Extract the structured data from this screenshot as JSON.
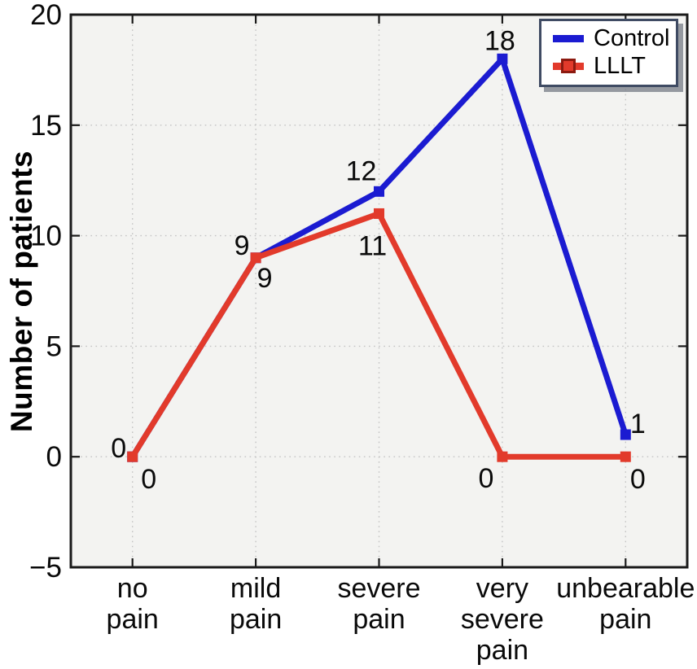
{
  "figure": {
    "background": "#ffffff",
    "plot_background": "#f3f3f1",
    "grid_color": "#c3c3c3",
    "axis_color": "#1a1a1a",
    "legend_border_color": "#3f4b63"
  },
  "chart_data": {
    "type": "line",
    "title": "",
    "xlabel": "",
    "ylabel": "Number of patients",
    "ylim": [
      -5,
      20
    ],
    "yticks": [
      20,
      15,
      10,
      5,
      0,
      -5
    ],
    "ytick_labels": [
      "20",
      "15",
      "10",
      "5",
      "0",
      "−5"
    ],
    "grid": true,
    "legend_position": "top-right",
    "categories": [
      "no pain",
      "mild pain",
      "severe pain",
      "very severe pain",
      "unbearable pain"
    ],
    "category_label_lines": [
      [
        "no",
        "pain"
      ],
      [
        "mild",
        "pain"
      ],
      [
        "severe",
        "pain"
      ],
      [
        "very",
        "severe",
        "pain"
      ],
      [
        "unbearable",
        "pain"
      ]
    ],
    "series": [
      {
        "name": "Control",
        "color": "#1b1bd1",
        "marker": "square",
        "values": [
          0,
          9,
          12,
          18,
          1
        ],
        "point_labels": [
          "0",
          "9",
          "12",
          "18",
          "1"
        ]
      },
      {
        "name": "LLLT",
        "color": "#e23a2b",
        "marker": "square",
        "marker_edge": "#8c1a10",
        "values": [
          0,
          9,
          11,
          0,
          0
        ],
        "point_labels": [
          "0",
          "9",
          "11",
          "0",
          "0"
        ]
      }
    ]
  }
}
